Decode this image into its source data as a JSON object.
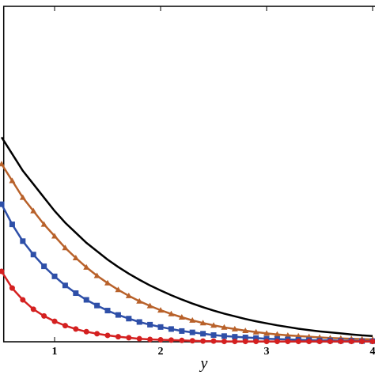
{
  "chart_data": {
    "type": "line",
    "xlabel": "y",
    "x": [
      0.5,
      0.6,
      0.7,
      0.8,
      0.9,
      1.0,
      1.1,
      1.2,
      1.3,
      1.4,
      1.5,
      1.6,
      1.7,
      1.8,
      1.9,
      2.0,
      2.1,
      2.2,
      2.3,
      2.4,
      2.5,
      2.6,
      2.7,
      2.8,
      2.9,
      3.0,
      3.1,
      3.2,
      3.3,
      3.4,
      3.5,
      3.6,
      3.7,
      3.8,
      3.9,
      4.0
    ],
    "series": [
      {
        "color": "#000000",
        "marker": "none",
        "values": [
          0.61,
          0.56,
          0.51,
          0.47,
          0.43,
          0.39,
          0.355,
          0.325,
          0.295,
          0.27,
          0.245,
          0.223,
          0.203,
          0.185,
          0.168,
          0.153,
          0.139,
          0.126,
          0.114,
          0.103,
          0.093,
          0.084,
          0.076,
          0.068,
          0.061,
          0.055,
          0.049,
          0.044,
          0.039,
          0.035,
          0.031,
          0.028,
          0.025,
          0.022,
          0.019,
          0.017
        ]
      },
      {
        "color": "#b8612a",
        "marker": "triangle",
        "values": [
          0.53,
          0.48,
          0.43,
          0.39,
          0.35,
          0.315,
          0.28,
          0.25,
          0.222,
          0.197,
          0.175,
          0.155,
          0.137,
          0.121,
          0.107,
          0.094,
          0.083,
          0.073,
          0.064,
          0.056,
          0.049,
          0.043,
          0.038,
          0.033,
          0.029,
          0.025,
          0.022,
          0.019,
          0.017,
          0.015,
          0.013,
          0.011,
          0.01,
          0.009,
          0.008,
          0.007
        ]
      },
      {
        "color": "#2e4fa8",
        "marker": "square",
        "values": [
          0.41,
          0.35,
          0.3,
          0.26,
          0.225,
          0.195,
          0.168,
          0.145,
          0.125,
          0.108,
          0.093,
          0.08,
          0.069,
          0.059,
          0.051,
          0.044,
          0.038,
          0.032,
          0.028,
          0.024,
          0.02,
          0.017,
          0.015,
          0.013,
          0.011,
          0.009,
          0.008,
          0.007,
          0.006,
          0.005,
          0.004,
          0.004,
          0.003,
          0.003,
          0.002,
          0.002
        ]
      },
      {
        "color": "#d42020",
        "marker": "circle",
        "values": [
          0.21,
          0.16,
          0.125,
          0.097,
          0.077,
          0.061,
          0.048,
          0.038,
          0.03,
          0.024,
          0.019,
          0.015,
          0.012,
          0.009,
          0.007,
          0.006,
          0.005,
          0.004,
          0.003,
          0.002,
          0.002,
          0.001,
          0.001,
          0.001,
          0.001,
          0.001,
          0.001,
          0.001,
          0.001,
          0.001,
          0.001,
          0.001,
          0.001,
          0.001,
          0.001,
          0.001
        ]
      }
    ],
    "xlim": [
      0.52,
      4.03
    ],
    "xticks": [
      1,
      2,
      3,
      4
    ],
    "ylim": [
      0,
      1
    ]
  }
}
